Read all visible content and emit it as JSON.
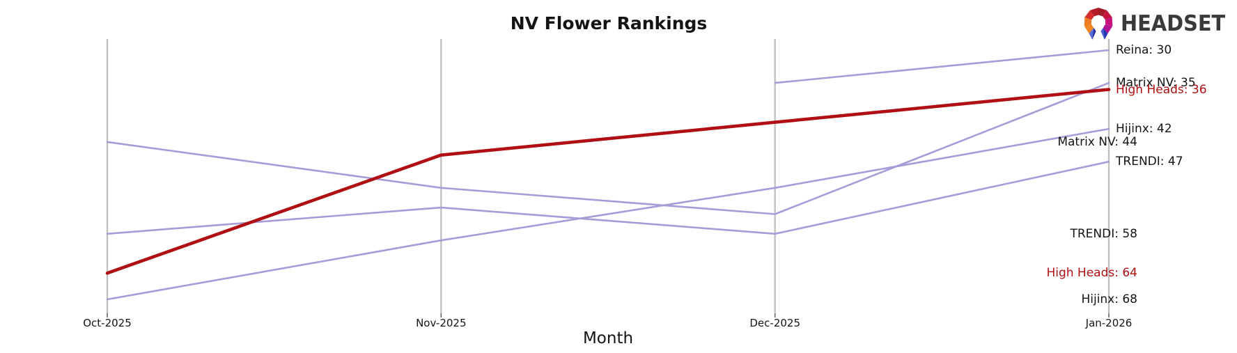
{
  "title": "NV Flower Rankings",
  "xlabel": "Month",
  "logo": {
    "text": "HEADSET"
  },
  "colors": {
    "highlight_line": "#b01013",
    "normal_line": "#a89cd8",
    "gridline": "#bdbdbd",
    "text": "#141414",
    "highlight_text": "#b01013",
    "logo_text": "#3a3a3c"
  },
  "chart_data": {
    "type": "line",
    "title": "NV Flower Rankings",
    "xlabel": "Month",
    "ylabel": "",
    "y_axis": "rank (lower is better, inverted, no visible axis)",
    "grid": "vertical-only",
    "categories": [
      "Oct-2025",
      "Nov-2025",
      "Dec-2025",
      "Jan-2026"
    ],
    "series": [
      {
        "name": "Matrix NV",
        "values": [
          44,
          51,
          55,
          35
        ],
        "color": "#a89cd8",
        "width": 2.6,
        "highlight": false
      },
      {
        "name": "TRENDI",
        "values": [
          58,
          54,
          58,
          47
        ],
        "color": "#a89cd8",
        "width": 2.6,
        "highlight": false
      },
      {
        "name": "Hijinx",
        "values": [
          68,
          59,
          51,
          42
        ],
        "color": "#a89cd8",
        "width": 2.6,
        "highlight": false
      },
      {
        "name": "Reina",
        "values": [
          null,
          null,
          35,
          30
        ],
        "color": "#a89cd8",
        "width": 2.6,
        "highlight": false
      },
      {
        "name": "High Heads",
        "values": [
          64,
          46,
          41,
          36
        ],
        "color": "#b01013",
        "width": 4.6,
        "highlight": true
      }
    ],
    "left_labels": [
      {
        "text": "Matrix NV: 44",
        "value": 44,
        "color": "#141414"
      },
      {
        "text": "TRENDI: 58",
        "value": 58,
        "color": "#141414"
      },
      {
        "text": "High Heads: 64",
        "value": 64,
        "color": "#b01013"
      },
      {
        "text": "Hijinx: 68",
        "value": 68,
        "color": "#141414"
      }
    ],
    "right_labels": [
      {
        "text": "Reina: 30",
        "value": 30,
        "color": "#141414"
      },
      {
        "text": "Matrix NV: 35",
        "value": 35,
        "color": "#141414"
      },
      {
        "text": "High Heads: 36",
        "value": 36,
        "color": "#b01013"
      },
      {
        "text": "Hijinx: 42",
        "value": 42,
        "color": "#141414"
      },
      {
        "text": "TRENDI: 47",
        "value": 47,
        "color": "#141414"
      }
    ]
  }
}
